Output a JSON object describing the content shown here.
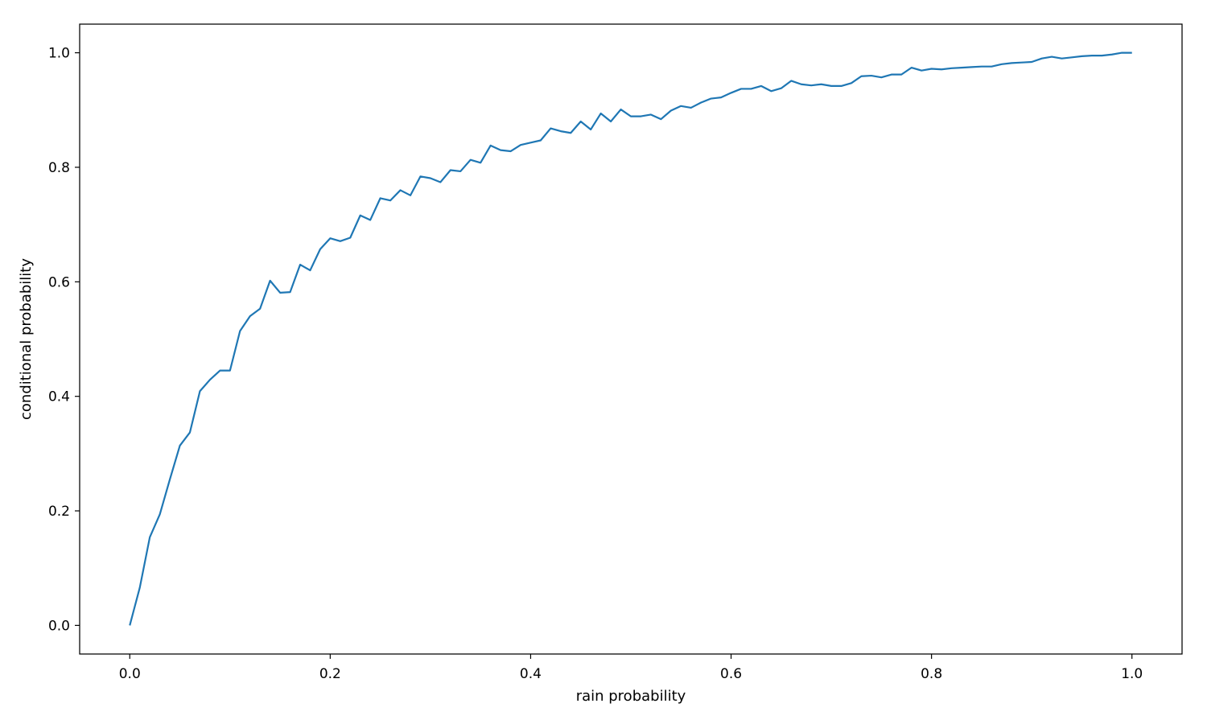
{
  "chart_data": {
    "type": "line",
    "title": "",
    "xlabel": "rain probability",
    "ylabel": "conditional probability",
    "xlim": [
      -0.05,
      1.05
    ],
    "ylim": [
      -0.05,
      1.05
    ],
    "xticks": [
      0.0,
      0.2,
      0.4,
      0.6,
      0.8,
      1.0
    ],
    "xtick_labels": [
      "0.0",
      "0.2",
      "0.4",
      "0.6",
      "0.8",
      "1.0"
    ],
    "yticks": [
      0.0,
      0.2,
      0.4,
      0.6,
      0.8,
      1.0
    ],
    "ytick_labels": [
      "0.0",
      "0.2",
      "0.4",
      "0.6",
      "0.8",
      "1.0"
    ],
    "grid": false,
    "series": [
      {
        "color": "#1f77b4",
        "x": [
          0.0,
          0.01,
          0.02,
          0.03,
          0.04,
          0.05,
          0.06,
          0.07,
          0.08,
          0.09,
          0.1,
          0.11,
          0.12,
          0.13,
          0.14,
          0.15,
          0.16,
          0.17,
          0.18,
          0.19,
          0.2,
          0.21,
          0.22,
          0.23,
          0.24,
          0.25,
          0.26,
          0.27,
          0.28,
          0.29,
          0.3,
          0.31,
          0.32,
          0.33,
          0.34,
          0.35,
          0.36,
          0.37,
          0.38,
          0.39,
          0.4,
          0.41,
          0.42,
          0.43,
          0.44,
          0.45,
          0.46,
          0.47,
          0.48,
          0.49,
          0.5,
          0.51,
          0.52,
          0.53,
          0.54,
          0.55,
          0.56,
          0.57,
          0.58,
          0.59,
          0.6,
          0.61,
          0.62,
          0.63,
          0.64,
          0.65,
          0.66,
          0.67,
          0.68,
          0.69,
          0.7,
          0.71,
          0.72,
          0.73,
          0.74,
          0.75,
          0.76,
          0.77,
          0.78,
          0.79,
          0.8,
          0.81,
          0.82,
          0.83,
          0.84,
          0.85,
          0.86,
          0.87,
          0.88,
          0.89,
          0.9,
          0.91,
          0.92,
          0.93,
          0.94,
          0.95,
          0.96,
          0.97,
          0.98,
          0.99,
          1.0
        ],
        "y": [
          0.0,
          0.066,
          0.154,
          0.194,
          0.255,
          0.314,
          0.337,
          0.409,
          0.429,
          0.445,
          0.445,
          0.514,
          0.54,
          0.553,
          0.602,
          0.581,
          0.582,
          0.63,
          0.62,
          0.657,
          0.676,
          0.671,
          0.677,
          0.716,
          0.708,
          0.746,
          0.742,
          0.76,
          0.751,
          0.784,
          0.781,
          0.774,
          0.795,
          0.793,
          0.813,
          0.808,
          0.838,
          0.83,
          0.828,
          0.839,
          0.843,
          0.847,
          0.868,
          0.863,
          0.86,
          0.88,
          0.866,
          0.894,
          0.88,
          0.901,
          0.889,
          0.889,
          0.892,
          0.884,
          0.899,
          0.907,
          0.904,
          0.913,
          0.92,
          0.922,
          0.93,
          0.937,
          0.937,
          0.942,
          0.933,
          0.938,
          0.951,
          0.945,
          0.943,
          0.945,
          0.942,
          0.942,
          0.947,
          0.959,
          0.96,
          0.957,
          0.962,
          0.962,
          0.974,
          0.969,
          0.972,
          0.971,
          0.973,
          0.974,
          0.975,
          0.976,
          0.976,
          0.98,
          0.982,
          0.983,
          0.984,
          0.99,
          0.993,
          0.99,
          0.992,
          0.994,
          0.995,
          0.995,
          0.997,
          1.0,
          1.0
        ]
      }
    ]
  }
}
